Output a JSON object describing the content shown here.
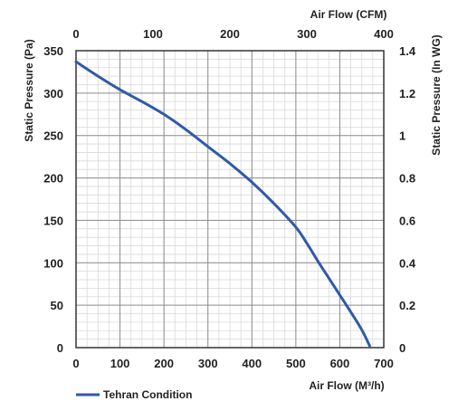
{
  "chart_data": {
    "type": "line",
    "title": "",
    "xlabel_bottom": "Air Flow (M³/h)",
    "xlabel_top": "Air Flow (CFM)",
    "ylabel_left": "Static Pressure (Pa)",
    "ylabel_right": "Static Pressure (In WG)",
    "x_range": [
      0,
      700
    ],
    "y_range": [
      0,
      350
    ],
    "x_top_range": [
      0,
      400
    ],
    "y_right_range": [
      0,
      1.4
    ],
    "x_ticks": [
      0,
      100,
      200,
      300,
      400,
      500,
      600,
      700
    ],
    "y_ticks": [
      0,
      50,
      100,
      150,
      200,
      250,
      300,
      350
    ],
    "x_top_ticks": [
      0,
      100,
      200,
      300,
      400
    ],
    "y_right_ticks": [
      "0",
      "0.2",
      "0.4",
      "0.6",
      "0.8",
      "1",
      "1.2",
      "1.4"
    ],
    "grid": true,
    "legend_position": "bottom-left",
    "series": [
      {
        "name": "Tehran Condition",
        "color": "#2f5aa8",
        "x": [
          0,
          50,
          100,
          150,
          200,
          250,
          300,
          350,
          400,
          450,
          500,
          525,
          550,
          575,
          600,
          625,
          650,
          668
        ],
        "y": [
          337,
          320,
          304,
          290,
          275,
          257,
          237,
          217,
          195,
          170,
          142,
          123,
          102,
          82,
          62,
          42,
          21,
          2
        ]
      }
    ]
  }
}
